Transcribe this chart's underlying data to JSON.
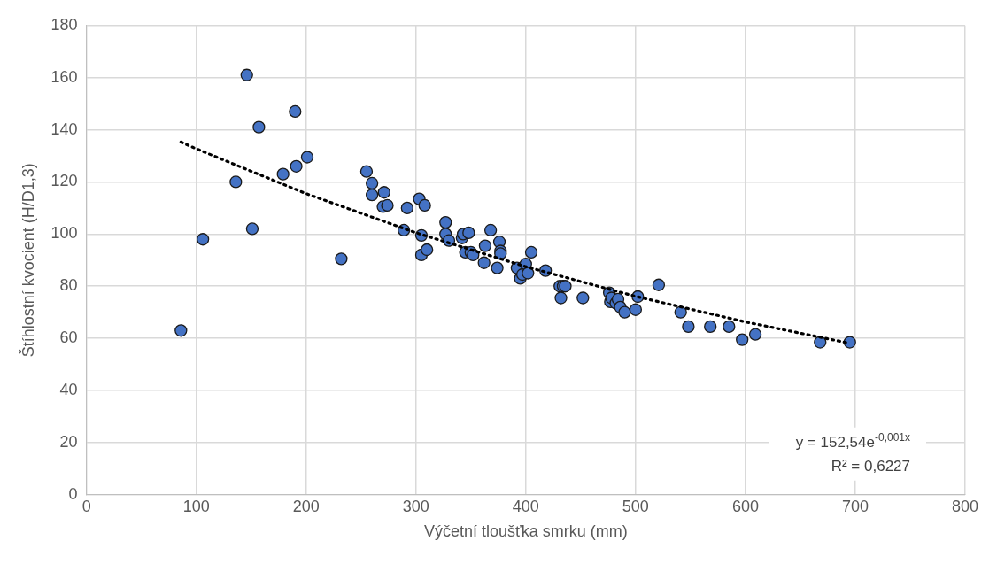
{
  "chart_data": {
    "type": "scatter",
    "xlabel": "Výčetní tloušťka smrku (mm)",
    "ylabel": "Štíhlostní kvocient (H/D1,3)",
    "xlim": [
      0,
      800
    ],
    "xticks": [
      0,
      100,
      200,
      300,
      400,
      500,
      600,
      700,
      800
    ],
    "ylim": [
      0,
      180
    ],
    "yticks": [
      0,
      20,
      40,
      60,
      80,
      100,
      120,
      140,
      160,
      180
    ],
    "grid": true,
    "legend": false,
    "marker": "circle",
    "annotations": [
      "y = 152,54e$^{-0,001x}$",
      "R² = 0,6227"
    ],
    "series": [
      {
        "color": "#4472c4",
        "x": [
          86,
          106,
          136,
          146,
          151,
          157,
          179,
          190,
          191,
          201,
          232,
          255,
          260,
          260,
          270,
          271,
          274,
          289,
          292,
          303,
          305,
          305,
          308,
          310,
          327,
          327,
          330,
          342,
          343,
          345,
          348,
          350,
          352,
          362,
          363,
          368,
          374,
          376,
          377,
          377,
          392,
          395,
          397,
          400,
          402,
          405,
          418,
          431,
          432,
          434,
          436,
          452,
          476,
          477,
          478,
          482,
          484,
          486,
          490,
          500,
          502,
          521,
          541,
          548,
          568,
          585,
          597,
          609,
          668,
          695
        ],
        "values": [
          63,
          98,
          120,
          161,
          102,
          141,
          123,
          147,
          126,
          129.5,
          90.5,
          124,
          119.5,
          115,
          110.5,
          116,
          111,
          101.5,
          110,
          113.5,
          92,
          99.5,
          111,
          94,
          104.5,
          100,
          97.5,
          98.5,
          100,
          93,
          100.5,
          93,
          92,
          89,
          95.5,
          101.5,
          87,
          97,
          93.5,
          92.5,
          87,
          83,
          84.5,
          88.5,
          85,
          93,
          86,
          80,
          75.5,
          80,
          80,
          75.5,
          77.5,
          74,
          75.5,
          73.5,
          75,
          72,
          70,
          71,
          76,
          80.5,
          70,
          64.5,
          64.5,
          64.5,
          59.5,
          61.5,
          58.5,
          58.5
        ]
      },
      {
        "type": "line",
        "color": "#000000",
        "line_style": "dotted",
        "marker": "none",
        "x": [
          86,
          100,
          200,
          300,
          400,
          500,
          600,
          695
        ],
        "values": [
          135.3,
          132.7,
          115.5,
          100.5,
          87.5,
          76.1,
          66.3,
          58.1
        ]
      }
    ]
  }
}
